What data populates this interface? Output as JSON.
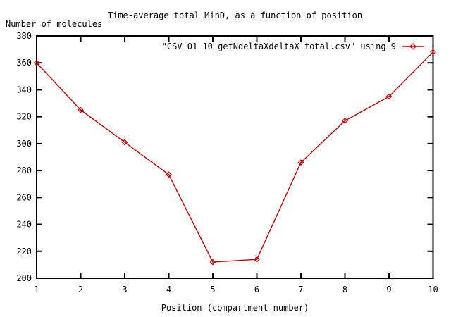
{
  "title": "Time-average total MinD, as a function of position",
  "y_axis_label": "Number of molecules",
  "x_axis_label": "Position (compartment number)",
  "legend": {
    "label": "\"CSV_01_10_getNdeltaXdeltaX_total.csv\" using 9"
  },
  "colors": {
    "series": "#cc0000",
    "axis": "#000000",
    "text": "#000000",
    "background": "#ffffff"
  },
  "chart_data": {
    "type": "line",
    "title": "Time-average total MinD, as a function of position",
    "xlabel": "Position (compartment number)",
    "ylabel": "Number of molecules",
    "x": [
      1,
      2,
      3,
      4,
      5,
      6,
      7,
      8,
      9,
      10
    ],
    "series": [
      {
        "name": "\"CSV_01_10_getNdeltaXdeltaX_total.csv\" using 9",
        "values": [
          360,
          325,
          301,
          277,
          212,
          214,
          286,
          317,
          335,
          368
        ]
      }
    ],
    "xlim": [
      1,
      10
    ],
    "ylim": [
      200,
      380
    ],
    "x_ticks": [
      1,
      2,
      3,
      4,
      5,
      6,
      7,
      8,
      9,
      10
    ],
    "y_ticks": [
      200,
      220,
      240,
      260,
      280,
      300,
      320,
      340,
      360,
      380
    ],
    "marker": "diamond",
    "grid": false,
    "legend_position": "top-right"
  }
}
